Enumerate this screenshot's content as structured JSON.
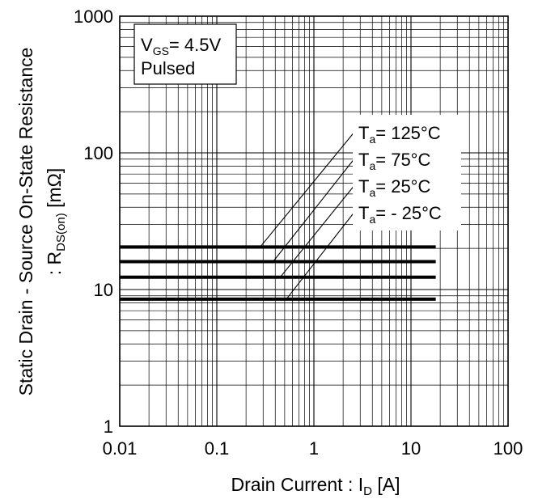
{
  "chart_data": {
    "type": "line",
    "title": "",
    "x_scale": "log",
    "y_scale": "log",
    "xlim": [
      0.01,
      100
    ],
    "ylim": [
      1,
      1000
    ],
    "x_ticks": [
      0.01,
      0.1,
      1,
      10,
      100
    ],
    "x_tick_labels": [
      "0.01",
      "0.1",
      "1",
      "10",
      "100"
    ],
    "y_ticks": [
      1,
      10,
      100,
      1000
    ],
    "y_tick_labels": [
      "1",
      "10",
      "100",
      "1000"
    ],
    "grid": true,
    "xlabel": {
      "main": "Drain Current : I",
      "sub": "D",
      "unit": " [A]"
    },
    "ylabel": {
      "line1": "Static Drain - Source On-State Resistance",
      "line2_prefix": ": R",
      "line2_sub": "DS(on)",
      "line2_unit": " [mΩ]"
    },
    "condition_box": {
      "line1_main": "V",
      "line1_sub": "GS",
      "line1_value": "= 4.5V",
      "line2": "Pulsed"
    },
    "series": [
      {
        "name": "Ta= 125°C",
        "label_prefix": "T",
        "label_sub": "a",
        "label_value": "= 125°C",
        "x": [
          0.01,
          18
        ],
        "y": [
          20.5,
          20.5
        ],
        "leader_x": 0.28
      },
      {
        "name": "Ta= 75°C",
        "label_prefix": "T",
        "label_sub": "a",
        "label_value": "= 75°C",
        "x": [
          0.01,
          18
        ],
        "y": [
          16,
          16
        ],
        "leader_x": 0.38
      },
      {
        "name": "Ta= 25°C",
        "label_prefix": "T",
        "label_sub": "a",
        "label_value": "= 25°C",
        "x": [
          0.01,
          18
        ],
        "y": [
          12.3,
          12.3
        ],
        "leader_x": 0.45
      },
      {
        "name": "Ta= - 25°C",
        "label_prefix": "T",
        "label_sub": "a",
        "label_value": "= - 25°C",
        "x": [
          0.01,
          18
        ],
        "y": [
          8.5,
          8.5
        ],
        "leader_x": 0.52
      }
    ]
  }
}
